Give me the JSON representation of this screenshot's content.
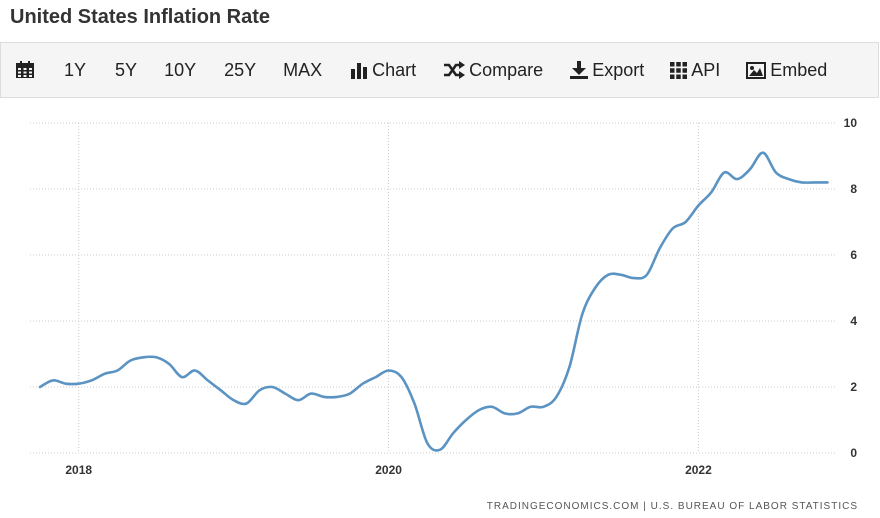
{
  "page": {
    "title": "United States Inflation Rate"
  },
  "toolbar": {
    "range_1y": "1Y",
    "range_5y": "5Y",
    "range_10y": "10Y",
    "range_25y": "25Y",
    "range_max": "MAX",
    "chart_label": "Chart",
    "compare_label": "Compare",
    "export_label": "Export",
    "api_label": "API",
    "embed_label": "Embed",
    "icons": [
      "calendar-icon",
      "bar-chart-icon",
      "shuffle-icon",
      "download-icon",
      "grid-icon",
      "image-icon"
    ]
  },
  "colors": {
    "line": "#5b93c3",
    "grid": "#cccccc",
    "text": "#333333"
  },
  "chart_data": {
    "type": "line",
    "title": "United States Inflation Rate",
    "xlabel": "",
    "ylabel": "",
    "ylim": [
      0,
      10
    ],
    "xlim": [
      2017.75,
      2022.83
    ],
    "yticks": [
      0,
      2,
      4,
      6,
      8,
      10
    ],
    "xticks": [
      2018,
      2020,
      2022
    ],
    "y_axis_side": "right",
    "grid": true,
    "series": [
      {
        "name": "Inflation Rate",
        "x": [
          2017.75,
          2017.833,
          2017.917,
          2018.0,
          2018.083,
          2018.167,
          2018.25,
          2018.333,
          2018.417,
          2018.5,
          2018.583,
          2018.667,
          2018.75,
          2018.833,
          2018.917,
          2019.0,
          2019.083,
          2019.167,
          2019.25,
          2019.333,
          2019.417,
          2019.5,
          2019.583,
          2019.667,
          2019.75,
          2019.833,
          2019.917,
          2020.0,
          2020.083,
          2020.167,
          2020.25,
          2020.333,
          2020.417,
          2020.5,
          2020.583,
          2020.667,
          2020.75,
          2020.833,
          2020.917,
          2021.0,
          2021.083,
          2021.167,
          2021.25,
          2021.333,
          2021.417,
          2021.5,
          2021.583,
          2021.667,
          2021.75,
          2021.833,
          2021.917,
          2022.0,
          2022.083,
          2022.167,
          2022.25,
          2022.333,
          2022.417,
          2022.5,
          2022.583,
          2022.667,
          2022.75,
          2022.833
        ],
        "values": [
          2.0,
          2.2,
          2.1,
          2.1,
          2.2,
          2.4,
          2.5,
          2.8,
          2.9,
          2.9,
          2.7,
          2.3,
          2.5,
          2.2,
          1.9,
          1.6,
          1.5,
          1.9,
          2.0,
          1.8,
          1.6,
          1.8,
          1.7,
          1.7,
          1.8,
          2.1,
          2.3,
          2.5,
          2.3,
          1.5,
          0.3,
          0.1,
          0.6,
          1.0,
          1.3,
          1.4,
          1.2,
          1.2,
          1.4,
          1.4,
          1.7,
          2.6,
          4.2,
          5.0,
          5.4,
          5.4,
          5.3,
          5.4,
          6.2,
          6.8,
          7.0,
          7.5,
          7.9,
          8.5,
          8.3,
          8.6,
          9.1,
          8.5,
          8.3,
          8.2,
          8.2,
          8.2
        ]
      }
    ],
    "source": "TRADINGECONOMICS.COM  |  U.S. BUREAU OF LABOR STATISTICS"
  }
}
